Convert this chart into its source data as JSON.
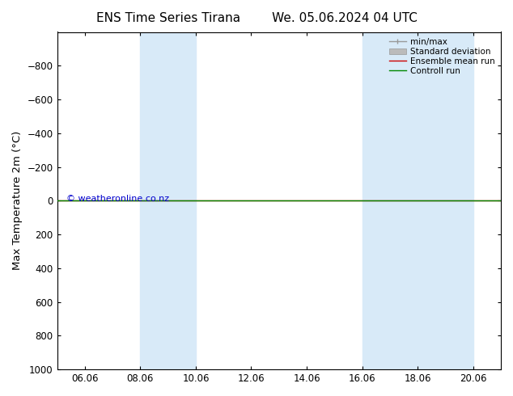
{
  "title": "ENS Time Series Tirana        We. 05.06.2024 04 UTC",
  "ylabel": "Max Temperature 2m (°C)",
  "ylim_top": -1000,
  "ylim_bottom": 1000,
  "yticks": [
    -800,
    -600,
    -400,
    -200,
    0,
    200,
    400,
    600,
    800,
    1000
  ],
  "xtick_labels": [
    "06.06",
    "08.06",
    "10.06",
    "12.06",
    "14.06",
    "16.06",
    "18.06",
    "20.06"
  ],
  "xtick_positions": [
    1,
    3,
    5,
    7,
    9,
    11,
    13,
    15
  ],
  "xlim": [
    0,
    16
  ],
  "shaded_bands": [
    {
      "x_start": 3,
      "x_end": 5
    },
    {
      "x_start": 11,
      "x_end": 15
    }
  ],
  "line_y": 0,
  "line_color_green": "#008800",
  "line_color_red": "#cc0000",
  "watermark": "© weatheronline.co.nz",
  "watermark_color": "#0000cc",
  "legend_entries": [
    "min/max",
    "Standard deviation",
    "Ensemble mean run",
    "Controll run"
  ],
  "legend_colors_line": [
    "#999999",
    "#bbbbbb",
    "#cc0000",
    "#008800"
  ],
  "bg_color": "#ffffff",
  "plot_bg": "#ffffff",
  "shade_color": "#d8eaf8",
  "tick_label_size": 8.5,
  "axis_label_size": 9.5,
  "title_size": 11
}
